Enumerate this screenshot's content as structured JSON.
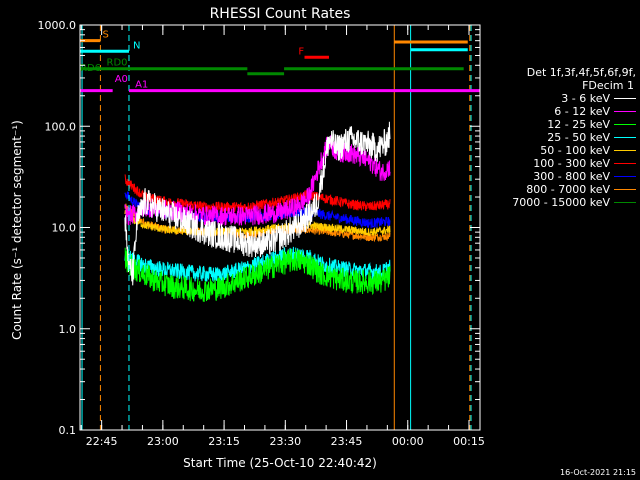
{
  "chart_data": {
    "type": "line",
    "title": "RHESSI Count Rates",
    "xlabel": "Start Time (25-Oct-10 22:40:42)",
    "ylabel": "Count Rate (s⁻¹ detector segment⁻¹)",
    "yscale": "log",
    "ylim": [
      0.1,
      1000
    ],
    "xlim_minutes": [
      -1,
      97
    ],
    "x_ticks": [
      "22:45",
      "23:00",
      "23:15",
      "23:30",
      "23:45",
      "00:00",
      "00:15"
    ],
    "x_tick_minutes": [
      4.3,
      19.3,
      34.3,
      49.3,
      64.3,
      79.3,
      94.3
    ],
    "y_ticks": [
      "0.1",
      "1.0",
      "10.0",
      "100.0",
      "1000.0"
    ],
    "y_tick_values": [
      0.1,
      1,
      10,
      100,
      1000
    ],
    "legend_placement": "right",
    "legend_header": [
      "Det 1f,3f,4f,5f,6f,9f,",
      "FDecim 1"
    ],
    "series": [
      {
        "name": "3 - 6 keV",
        "color": "#ffffff",
        "noise": 0.14,
        "x": [
          10,
          11,
          12,
          13,
          15,
          20,
          30,
          40,
          45,
          48,
          50,
          52,
          55,
          57,
          59,
          60,
          62,
          65,
          70,
          72,
          74,
          75
        ],
        "y": [
          12,
          4,
          3.5,
          12,
          18,
          14,
          9,
          7,
          7,
          8,
          9,
          10,
          13,
          17,
          45,
          75,
          60,
          75,
          65,
          60,
          70,
          85
        ]
      },
      {
        "name": "6 - 12 keV",
        "color": "#ff00ff",
        "noise": 0.1,
        "x": [
          10,
          11,
          13,
          15,
          20,
          30,
          40,
          48,
          52,
          55,
          58,
          60,
          62,
          65,
          70,
          73,
          75
        ],
        "y": [
          14,
          13,
          14,
          16,
          15,
          13,
          13,
          14,
          16,
          20,
          45,
          70,
          55,
          55,
          45,
          35,
          40
        ]
      },
      {
        "name": "12 - 25 keV",
        "color": "#00ff00",
        "noise": 0.12,
        "x": [
          10,
          12,
          15,
          18,
          22,
          28,
          33,
          38,
          43,
          48,
          52,
          55,
          58,
          62,
          66,
          70,
          73,
          75
        ],
        "y": [
          5,
          4,
          3.4,
          2.9,
          2.6,
          2.4,
          2.5,
          3,
          3.6,
          4.4,
          4.8,
          4.4,
          3.5,
          3.1,
          2.9,
          2.9,
          2.9,
          3.3
        ]
      },
      {
        "name": "25 - 50 keV",
        "color": "#00ffff",
        "noise": 0.08,
        "x": [
          10,
          12,
          15,
          20,
          28,
          33,
          38,
          43,
          48,
          52,
          55,
          58,
          62,
          66,
          70,
          73,
          75
        ],
        "y": [
          5.5,
          4.8,
          4.2,
          3.8,
          3.5,
          3.4,
          3.8,
          4.4,
          5.2,
          5.5,
          5.2,
          4.4,
          4.0,
          3.8,
          3.7,
          3.6,
          4.2
        ]
      },
      {
        "name": "50 - 100 keV",
        "color": "#ffcc00",
        "noise": 0.04,
        "x": [
          10,
          12,
          15,
          20,
          30,
          40,
          48,
          55,
          60,
          65,
          70,
          75
        ],
        "y": [
          14,
          12,
          10.5,
          9.5,
          9,
          9.2,
          10,
          10.5,
          10,
          9.5,
          9,
          9.5
        ]
      },
      {
        "name": "100 - 300 keV",
        "color": "#ff0000",
        "noise": 0.05,
        "x": [
          10,
          12,
          15,
          20,
          30,
          40,
          48,
          55,
          60,
          65,
          70,
          75
        ],
        "y": [
          30,
          25,
          20,
          18,
          16,
          16,
          18,
          21,
          19,
          17,
          16,
          17
        ]
      },
      {
        "name": "300 - 800 keV",
        "color": "#0000ff",
        "noise": 0.05,
        "x": [
          10,
          12,
          15,
          20,
          30,
          40,
          48,
          55,
          60,
          65,
          70,
          75
        ],
        "y": [
          22,
          18,
          15,
          13.5,
          12.5,
          12.5,
          13.5,
          14.5,
          13,
          12,
          11,
          11.5
        ]
      },
      {
        "name": "800 - 7000 keV",
        "color": "#ff8800",
        "noise": 0.04,
        "x": [
          10,
          12,
          15,
          20,
          30,
          40,
          48,
          55,
          60,
          65,
          70,
          75
        ],
        "y": [
          16,
          13.5,
          11,
          9.5,
          9,
          8.5,
          9.5,
          9.5,
          9,
          8.5,
          8,
          8.2
        ]
      },
      {
        "name": "7000 - 15000 keV",
        "color": "#008800",
        "noise": 0,
        "x": [],
        "y": []
      }
    ],
    "flags": [
      {
        "label": "S",
        "color": "#ff8800",
        "y": 700,
        "segments": [
          [
            -1,
            4
          ]
        ],
        "label_at": 4.5
      },
      {
        "label": "N",
        "color": "#00ffff",
        "y": 550,
        "segments": [
          [
            -1,
            11
          ]
        ],
        "label_at": 12
      },
      {
        "label": "F",
        "color": "#ff0000",
        "y": 480,
        "segments": [
          [
            54,
            60
          ]
        ],
        "label_at": 52.5
      },
      {
        "label": "RD0",
        "color": "#008800",
        "y": 370,
        "segments": [
          [
            -1,
            40
          ],
          [
            49,
            93
          ]
        ],
        "label_at": 5.5
      },
      {
        "label": "RD6",
        "color": "#008800",
        "y": 330,
        "segments": [
          [
            40,
            49
          ]
        ],
        "label_at": -1
      },
      {
        "label": "A0",
        "color": "#ff00ff",
        "y": 255,
        "segments": [],
        "label_at": 7.5
      },
      {
        "label": "A1",
        "color": "#ff00ff",
        "y": 225,
        "segments": [
          [
            -1,
            7
          ],
          [
            11,
            97
          ]
        ],
        "label_at": 12.5
      }
    ],
    "top_bars": [
      {
        "color": "#ff8800",
        "y": 680,
        "segments": [
          [
            76,
            94
          ]
        ]
      },
      {
        "color": "#00ffff",
        "y": 570,
        "segments": [
          [
            80,
            94
          ]
        ]
      }
    ],
    "vlines": [
      {
        "x": -0.5,
        "color": "#00ffff",
        "dash": false
      },
      {
        "x": 4,
        "color": "#ff8800",
        "dash": true
      },
      {
        "x": 11,
        "color": "#00ffff",
        "dash": true
      },
      {
        "x": 76,
        "color": "#ff8800",
        "dash": false
      },
      {
        "x": 80,
        "color": "#00ffff",
        "dash": false
      },
      {
        "x": 94.5,
        "color": "#ff8800",
        "dash": true
      },
      {
        "x": 94.8,
        "color": "#00ffff",
        "dash": true
      }
    ]
  },
  "datestamp": "16-Oct-2021 21:15"
}
